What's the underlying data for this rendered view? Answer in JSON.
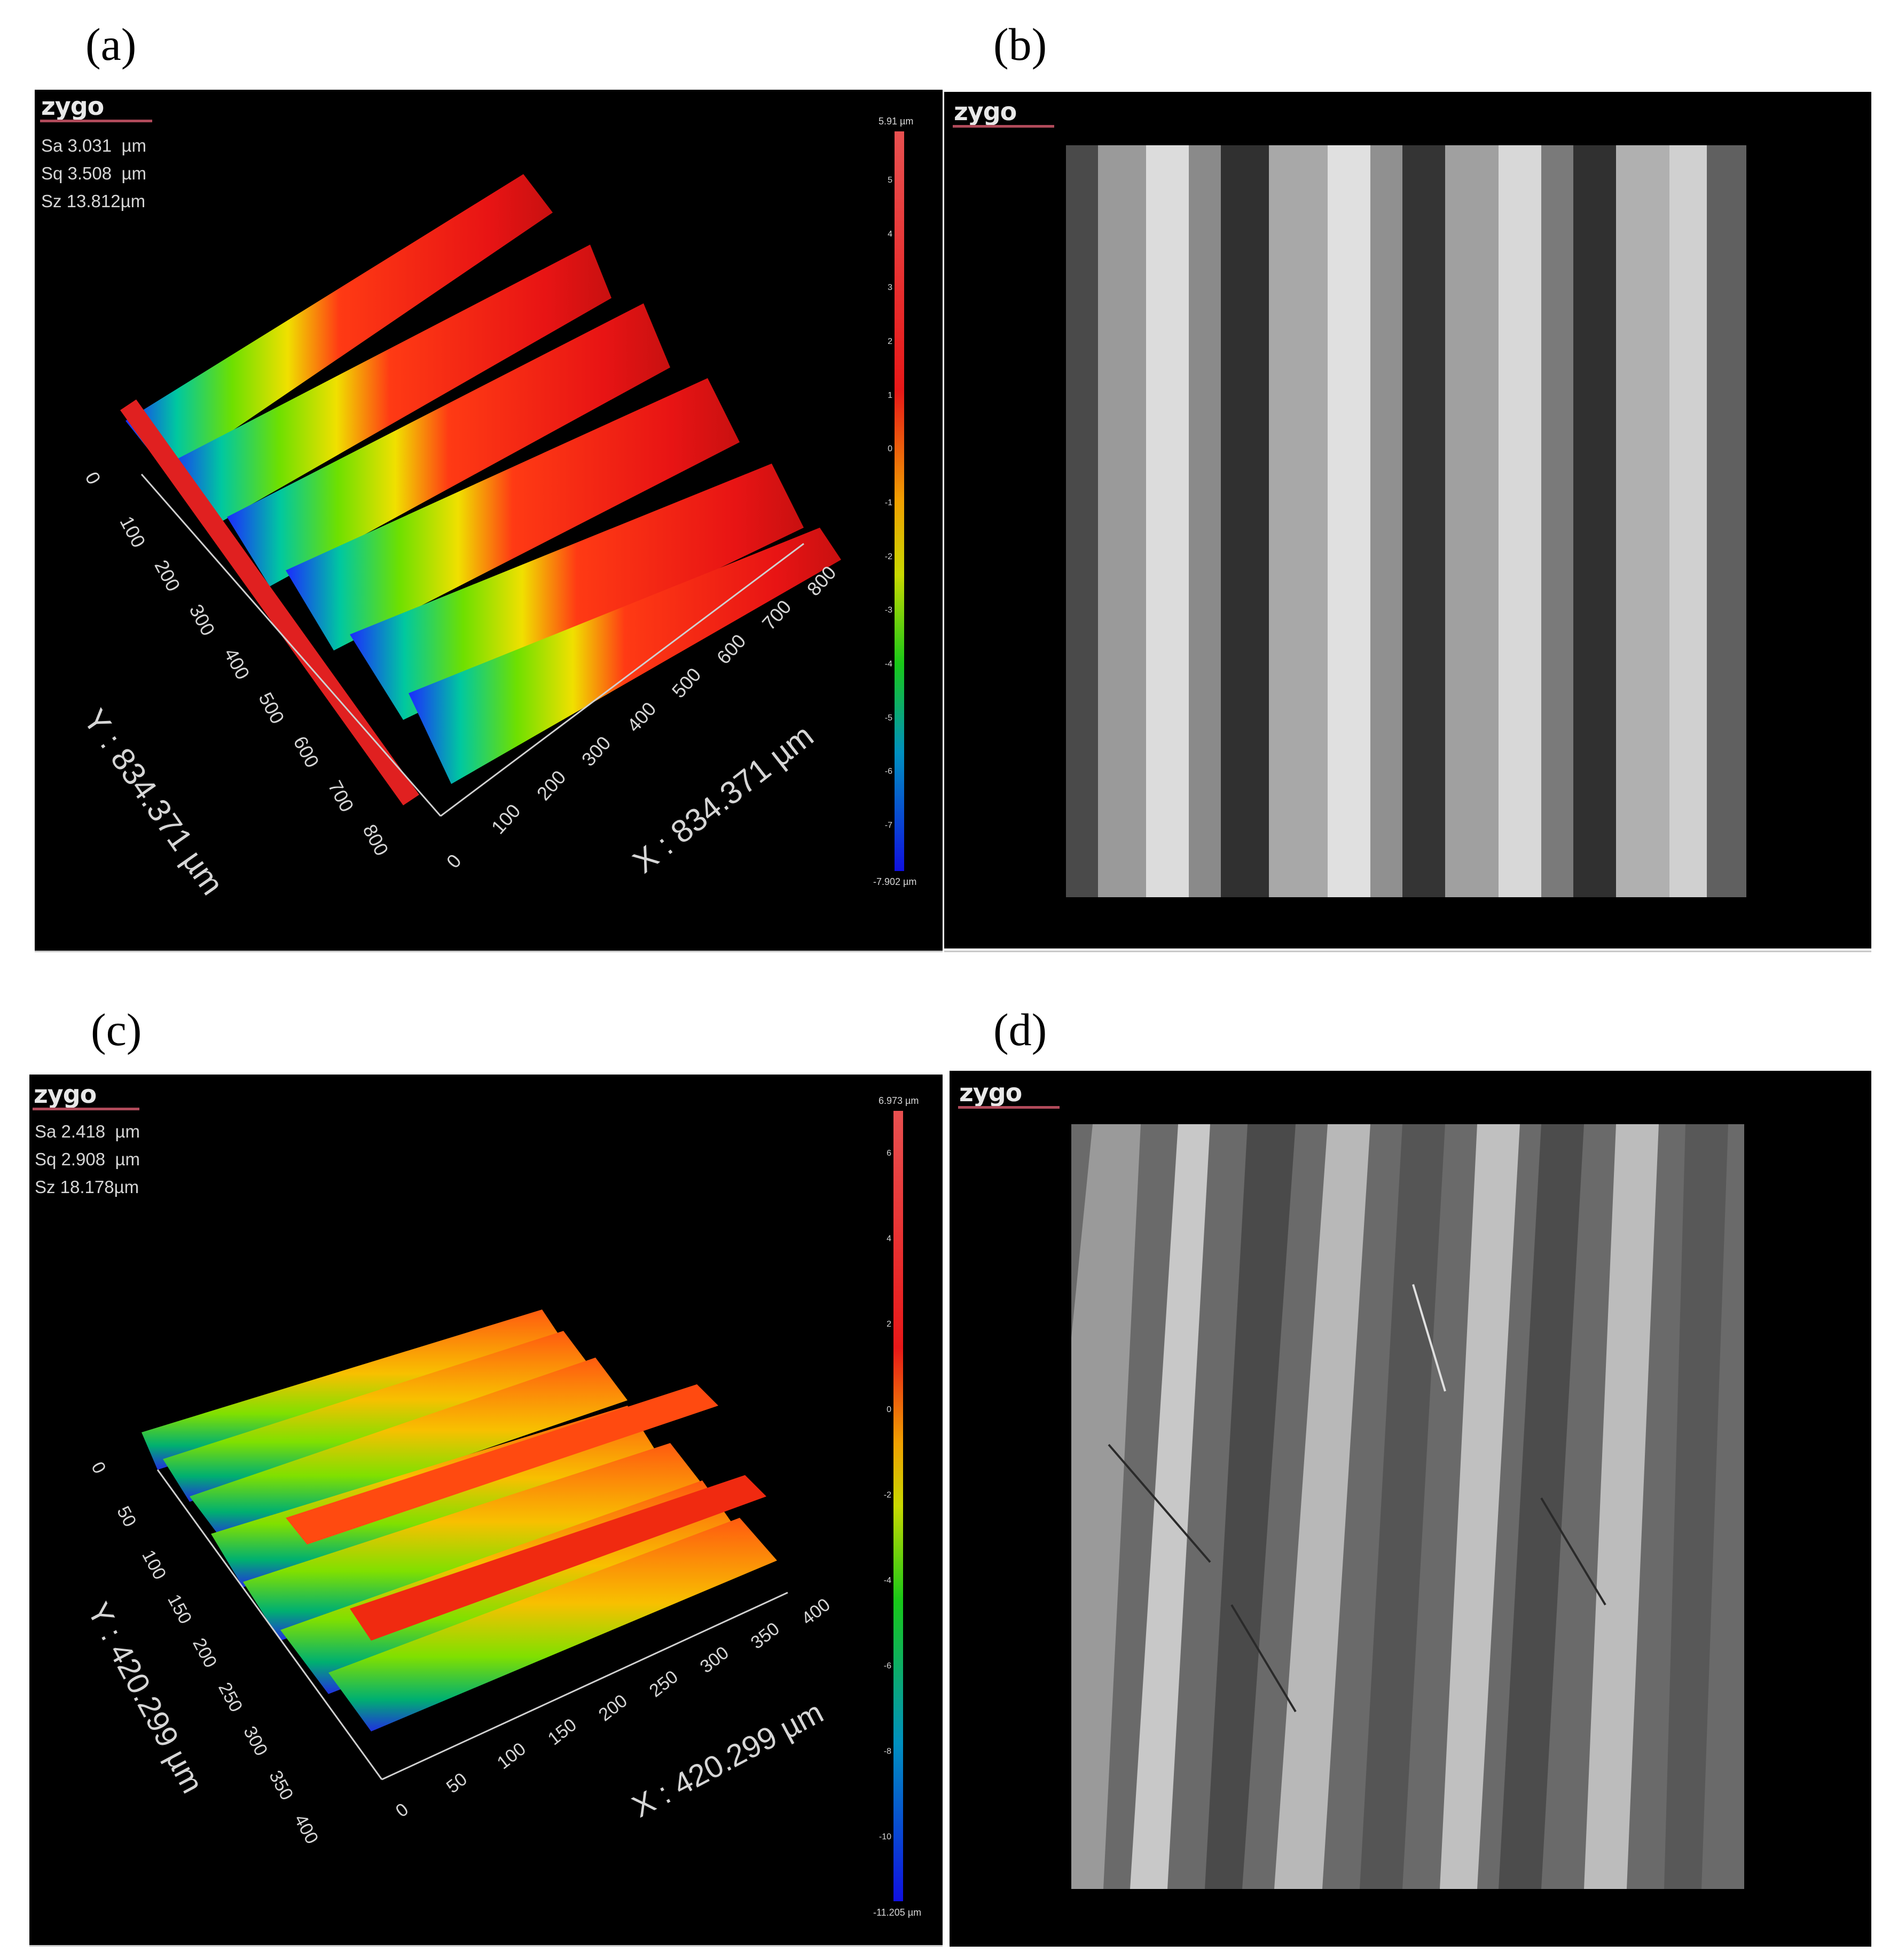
{
  "panels": [
    {
      "label": "(a)",
      "logo": "zygo",
      "stats": [
        "Sa 3.031  µm",
        "Sq 3.508  µm",
        "Sz 13.812µm"
      ],
      "colorbar": {
        "top_label": "5.91 µm",
        "bottom_label": "-7.902 µm",
        "ticks": [
          "5",
          "4",
          "3",
          "2",
          "1",
          "0",
          "-1",
          "-2",
          "-3",
          "-4",
          "-5",
          "-6",
          "-7"
        ]
      },
      "y_axis": {
        "title": "Y : 834.371 µm",
        "ticks": [
          "0",
          "100",
          "200",
          "300",
          "400",
          "500",
          "600",
          "700",
          "800"
        ]
      },
      "x_axis": {
        "title": "X : 834.371 µm",
        "ticks": [
          "0",
          "100",
          "200",
          "300",
          "400",
          "500",
          "600",
          "700",
          "800"
        ]
      }
    },
    {
      "label": "(b)",
      "logo": "zygo"
    },
    {
      "label": "(c)",
      "logo": "zygo",
      "stats": [
        "Sa 2.418  µm",
        "Sq 2.908  µm",
        "Sz 18.178µm"
      ],
      "colorbar": {
        "top_label": "6.973 µm",
        "bottom_label": "-11.205 µm",
        "ticks": [
          "6",
          "4",
          "2",
          "0",
          "-2",
          "-4",
          "-6",
          "-8",
          "-10"
        ]
      },
      "y_axis": {
        "title": "Y : 420.299 µm",
        "ticks": [
          "0",
          "50",
          "100",
          "150",
          "200",
          "250",
          "300",
          "350",
          "400"
        ]
      },
      "x_axis": {
        "title": "X : 420.299 µm",
        "ticks": [
          "0",
          "50",
          "100",
          "150",
          "200",
          "250",
          "300",
          "350",
          "400"
        ]
      }
    },
    {
      "label": "(d)",
      "logo": "zygo"
    }
  ],
  "colors": {
    "panel_bg": "#000000",
    "logo_underline": "#b04a5a",
    "micro_bg": "#5c5c5c"
  }
}
